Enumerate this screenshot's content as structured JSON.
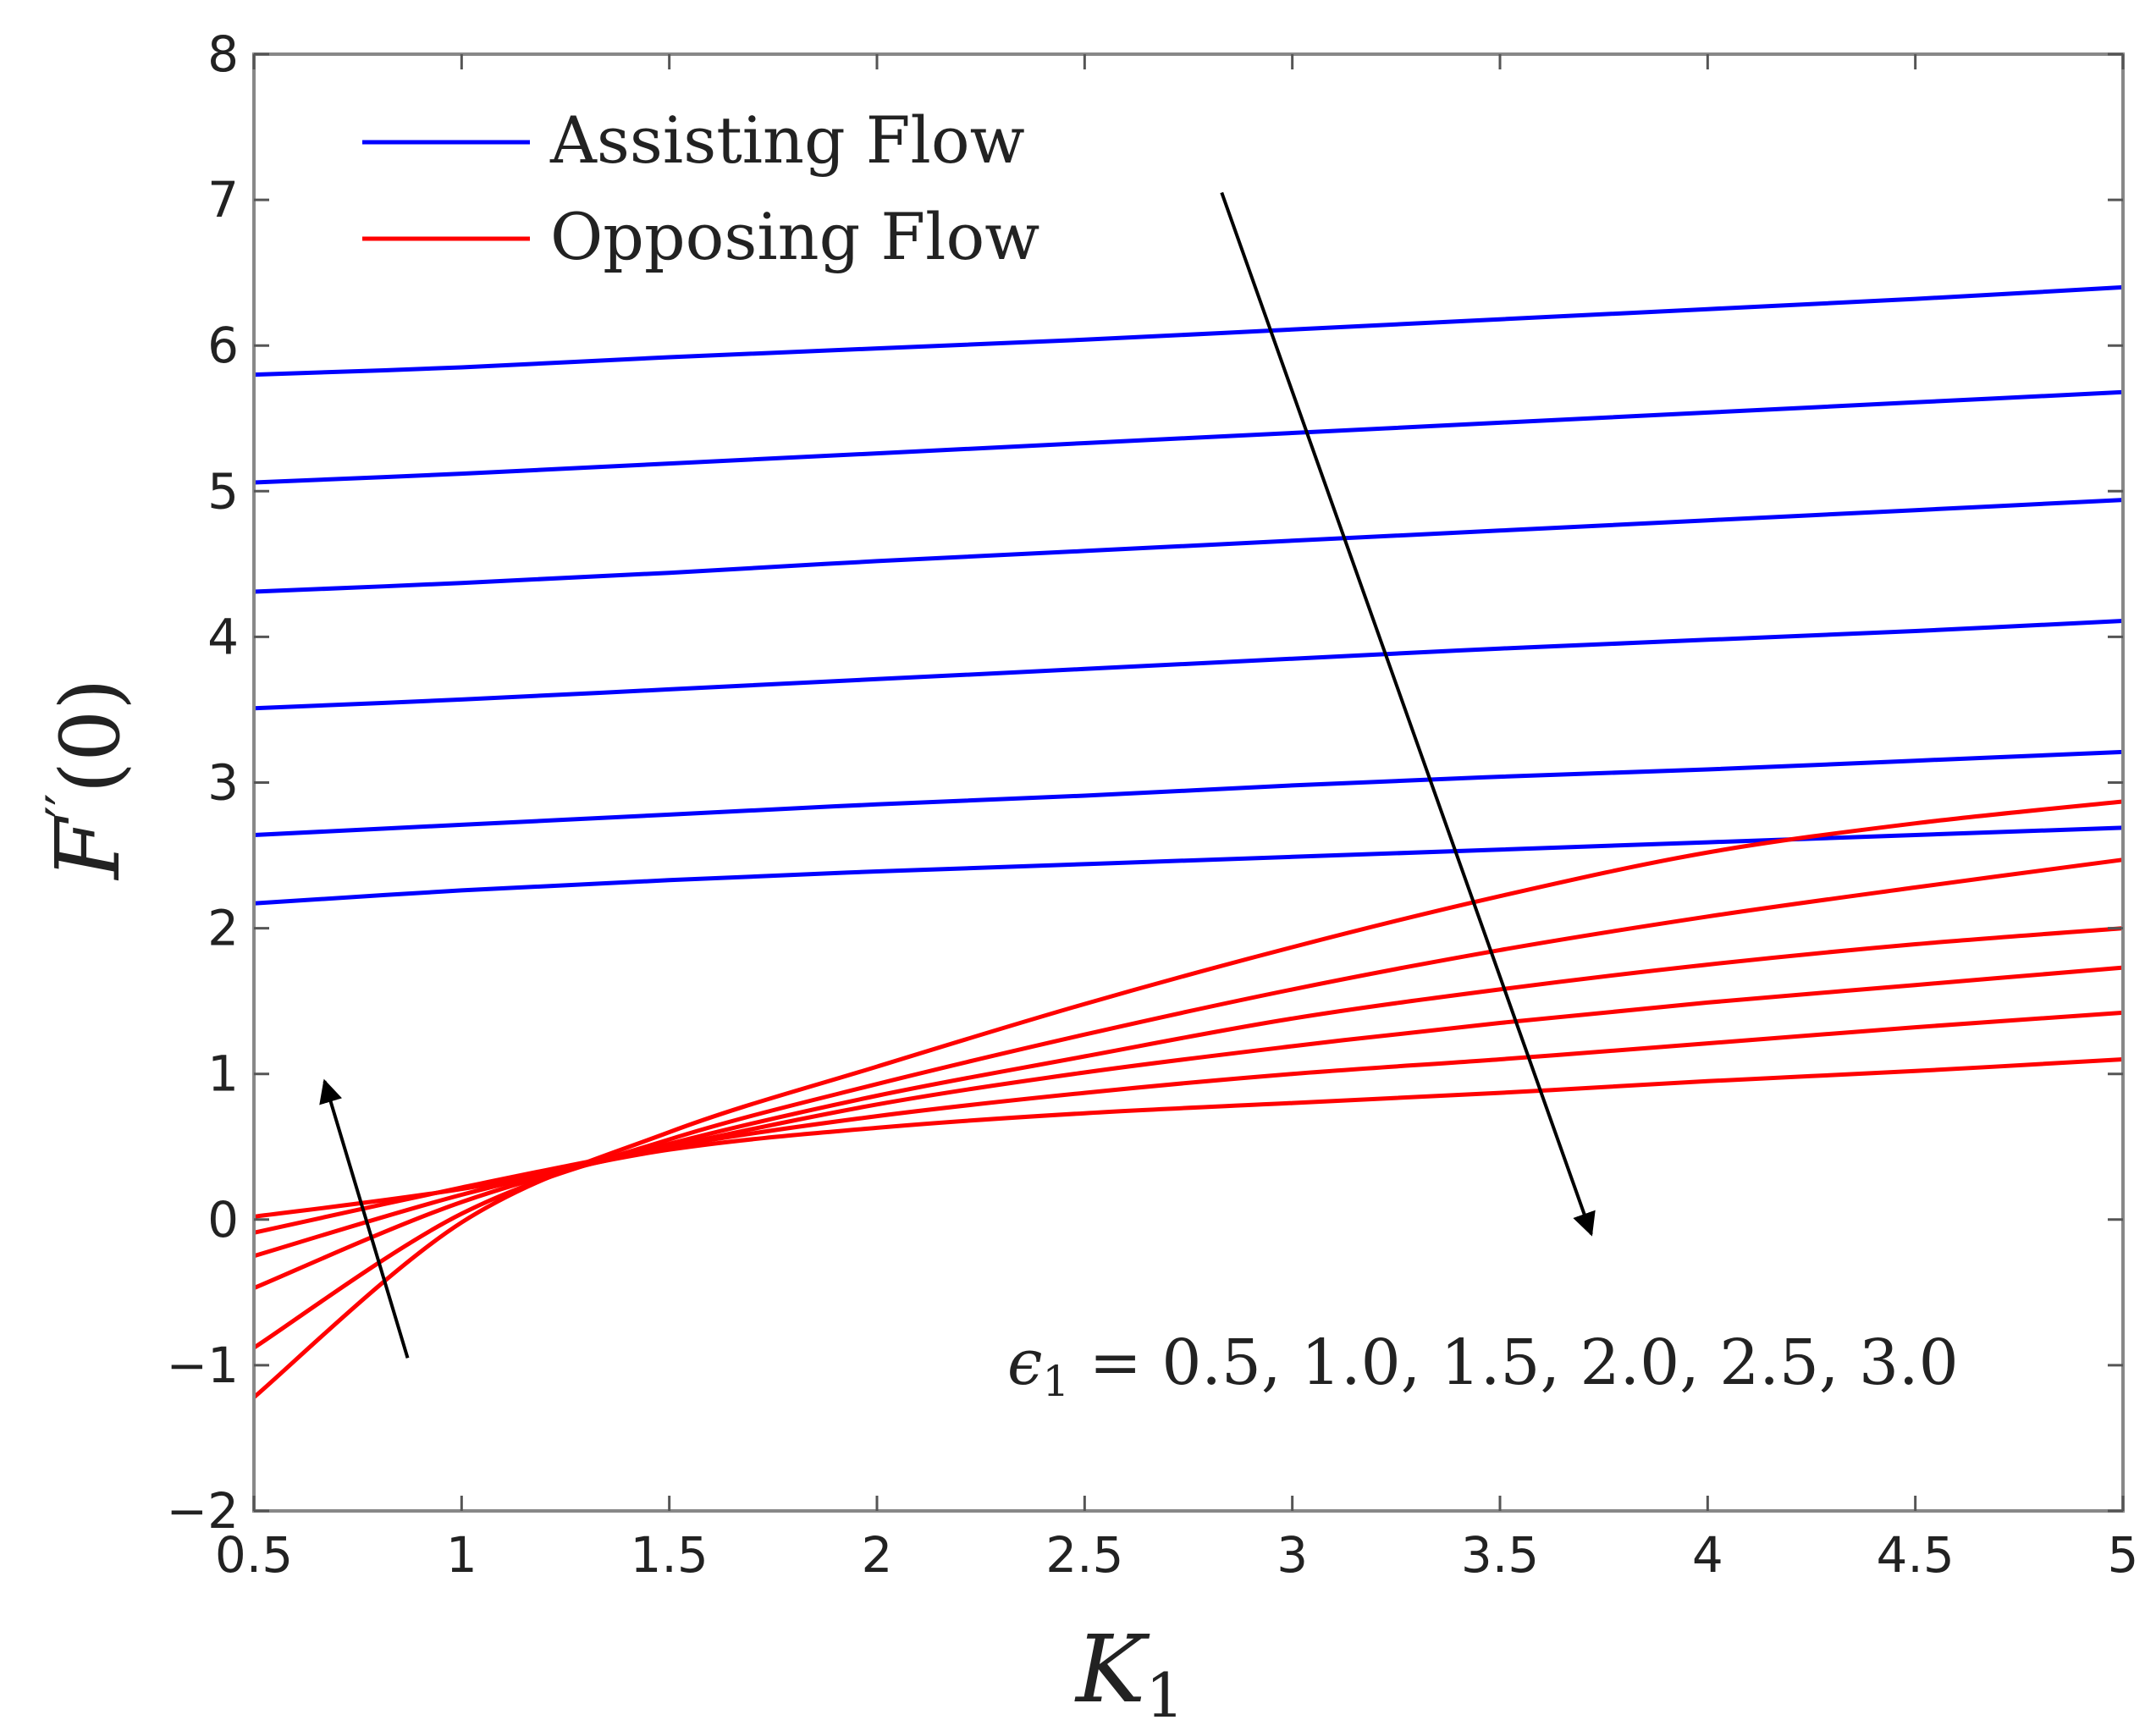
{
  "chart_data": {
    "type": "line",
    "xlabel": "K",
    "xlabel_sub": "1",
    "ylabel": "F",
    "ylabel_sup": "′′",
    "ylabel_suffix": "(0)",
    "xlim": [
      0.5,
      5
    ],
    "ylim": [
      -2,
      8
    ],
    "xticks": [
      0.5,
      1,
      1.5,
      2,
      2.5,
      3,
      3.5,
      4,
      4.5,
      5
    ],
    "xtick_labels": [
      "0.5",
      "1",
      "1.5",
      "2",
      "2.5",
      "3",
      "3.5",
      "4",
      "4.5",
      "5"
    ],
    "yticks": [
      -2,
      -1,
      0,
      1,
      2,
      3,
      4,
      5,
      6,
      7,
      8
    ],
    "ytick_labels": [
      "−2",
      "−1",
      "0",
      "1",
      "2",
      "3",
      "4",
      "5",
      "6",
      "7",
      "8"
    ],
    "grid": false,
    "legend": {
      "placement": "top-left",
      "entries": [
        {
          "label": "Assisting Flow",
          "color": "#0000ff"
        },
        {
          "label": "Opposing Flow",
          "color": "#ff0000"
        }
      ]
    },
    "annotation": {
      "prefix": "ϵ",
      "sub": "1",
      "text": " = 0.5, 1.0, 1.5, 2.0, 2.5, 3.0"
    },
    "arrows": [
      {
        "from": [
          2.83,
          7.05
        ],
        "to": [
          3.72,
          -0.1
        ]
      },
      {
        "from": [
          0.87,
          -0.95
        ],
        "to": [
          0.67,
          0.95
        ]
      }
    ],
    "x": [
      0.5,
      1.0,
      1.5,
      2.0,
      2.5,
      3.0,
      3.5,
      4.0,
      4.5,
      5.0
    ],
    "series": [
      {
        "group": "assisting",
        "color": "#0000ff",
        "values": [
          5.8,
          5.85,
          5.92,
          5.98,
          6.04,
          6.11,
          6.18,
          6.25,
          6.32,
          6.4
        ]
      },
      {
        "group": "assisting",
        "color": "#0000ff",
        "values": [
          5.06,
          5.12,
          5.19,
          5.26,
          5.33,
          5.4,
          5.47,
          5.54,
          5.61,
          5.68
        ]
      },
      {
        "group": "assisting",
        "color": "#0000ff",
        "values": [
          4.31,
          4.37,
          4.44,
          4.52,
          4.59,
          4.66,
          4.73,
          4.8,
          4.87,
          4.94
        ]
      },
      {
        "group": "assisting",
        "color": "#0000ff",
        "values": [
          3.51,
          3.57,
          3.64,
          3.71,
          3.78,
          3.85,
          3.92,
          3.98,
          4.04,
          4.11
        ]
      },
      {
        "group": "assisting",
        "color": "#0000ff",
        "values": [
          2.64,
          2.71,
          2.78,
          2.85,
          2.91,
          2.98,
          3.04,
          3.09,
          3.15,
          3.21
        ]
      },
      {
        "group": "assisting",
        "color": "#0000ff",
        "values": [
          2.17,
          2.26,
          2.33,
          2.39,
          2.44,
          2.49,
          2.54,
          2.59,
          2.64,
          2.69
        ]
      },
      {
        "group": "opposing",
        "color": "#ff0000",
        "values": [
          0.02,
          0.21,
          0.48,
          0.63,
          0.73,
          0.8,
          0.87,
          0.95,
          1.02,
          1.1
        ]
      },
      {
        "group": "opposing",
        "color": "#ff0000",
        "values": [
          -0.09,
          0.22,
          0.5,
          0.71,
          0.87,
          1.0,
          1.1,
          1.21,
          1.32,
          1.42
        ]
      },
      {
        "group": "opposing",
        "color": "#ff0000",
        "values": [
          -0.25,
          0.17,
          0.5,
          0.79,
          1.01,
          1.19,
          1.35,
          1.49,
          1.61,
          1.73
        ]
      },
      {
        "group": "opposing",
        "color": "#ff0000",
        "values": [
          -0.47,
          0.12,
          0.52,
          0.85,
          1.12,
          1.38,
          1.58,
          1.75,
          1.89,
          2.0
        ]
      },
      {
        "group": "opposing",
        "color": "#ff0000",
        "values": [
          -0.88,
          0.04,
          0.55,
          0.93,
          1.27,
          1.58,
          1.85,
          2.08,
          2.28,
          2.47
        ]
      },
      {
        "group": "opposing",
        "color": "#ff0000",
        "values": [
          -1.22,
          -0.02,
          0.6,
          1.05,
          1.48,
          1.87,
          2.22,
          2.52,
          2.72,
          2.87
        ]
      }
    ]
  }
}
